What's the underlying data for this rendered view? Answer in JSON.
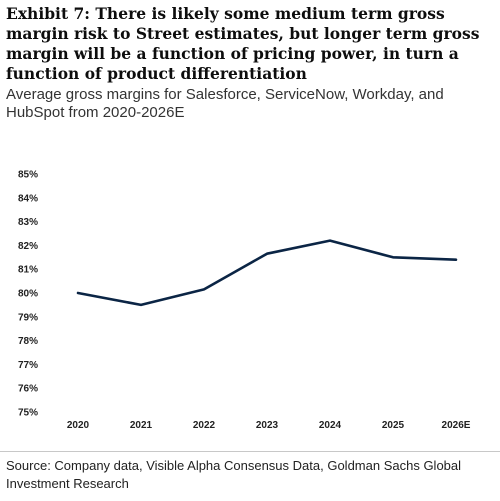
{
  "header": {
    "title": "Exhibit 7: There is likely some medium term gross margin risk to Street estimates, but longer term gross margin will be a function of pricing power, in turn a function of product differentiation",
    "subtitle": "Average gross margins for Salesforce, ServiceNow, Workday, and HubSpot from 2020-2026E"
  },
  "footer": {
    "source": "Source: Company data, Visible Alpha Consensus Data, Goldman Sachs Global Investment Research"
  },
  "chart_data": {
    "type": "line",
    "title": "",
    "xlabel": "",
    "ylabel": "",
    "categories": [
      "2020",
      "2021",
      "2022",
      "2023",
      "2024",
      "2025",
      "2026E"
    ],
    "series": [
      {
        "values": [
          80.0,
          79.5,
          80.15,
          81.65,
          82.2,
          81.5,
          81.4
        ]
      }
    ],
    "ylim": [
      75,
      85
    ],
    "yticks": [
      75,
      76,
      77,
      78,
      79,
      80,
      81,
      82,
      83,
      84,
      85
    ],
    "ytick_labels": [
      "75%",
      "76%",
      "77%",
      "78%",
      "79%",
      "80%",
      "81%",
      "82%",
      "83%",
      "84%",
      "85%"
    ],
    "grid": false,
    "line_color": "#0b2545"
  }
}
